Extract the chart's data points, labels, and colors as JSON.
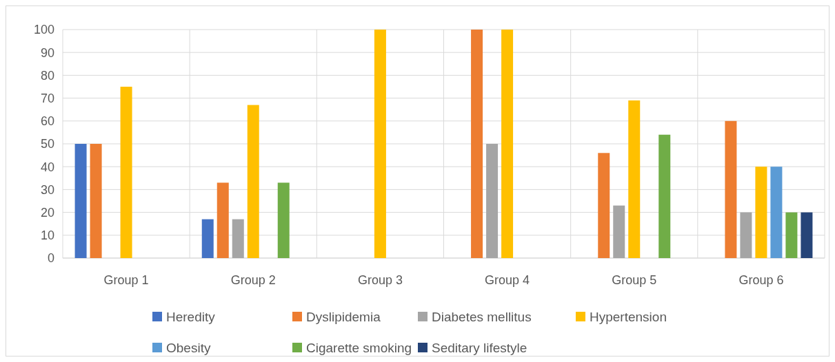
{
  "chart_data": {
    "type": "bar",
    "categories": [
      "Group 1",
      "Group 2",
      "Group 3",
      "Group 4",
      "Group 5",
      "Group 6"
    ],
    "series": [
      {
        "name": "Heredity",
        "color": "#4472c4",
        "values": [
          50,
          17,
          0,
          0,
          0,
          0
        ]
      },
      {
        "name": "Dyslipidemia",
        "color": "#ed7d31",
        "values": [
          50,
          33,
          0,
          100,
          46,
          60
        ]
      },
      {
        "name": "Diabetes mellitus",
        "color": "#a5a5a5",
        "values": [
          0,
          17,
          0,
          50,
          23,
          20
        ]
      },
      {
        "name": "Hypertension",
        "color": "#ffc000",
        "values": [
          75,
          67,
          100,
          100,
          69,
          40
        ]
      },
      {
        "name": "Obesity",
        "color": "#5b9bd5",
        "values": [
          0,
          0,
          0,
          0,
          0,
          40
        ]
      },
      {
        "name": "Cigarette smoking",
        "color": "#70ad47",
        "values": [
          0,
          33,
          0,
          0,
          54,
          20
        ]
      },
      {
        "name": "Seditary lifestyle",
        "color": "#264478",
        "values": [
          0,
          0,
          0,
          0,
          0,
          20
        ]
      }
    ],
    "ylim": [
      0,
      100
    ],
    "yticks": [
      0,
      10,
      20,
      30,
      40,
      50,
      60,
      70,
      80,
      90,
      100
    ],
    "grid": true,
    "legend": "bottom"
  }
}
